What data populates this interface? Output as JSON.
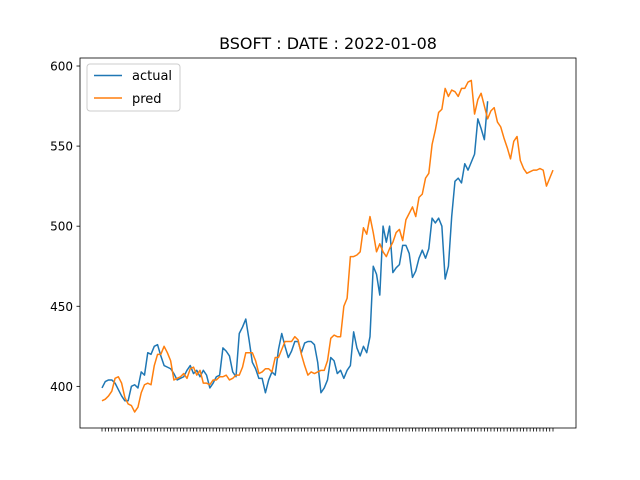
{
  "chart_data": {
    "type": "line",
    "title": "BSOFT : DATE : 2022-01-08",
    "xlabel": "",
    "ylabel": "",
    "ylim": [
      374,
      605
    ],
    "yticks": [
      400,
      450,
      500,
      550,
      600
    ],
    "legend": {
      "position": "top-left"
    },
    "grid": false,
    "series": [
      {
        "name": "actual",
        "color": "#1f77b4",
        "values": [
          399,
          403,
          404,
          404,
          402,
          398,
          394,
          391,
          391,
          400,
          401,
          399,
          409,
          407,
          421,
          420,
          425,
          426,
          419,
          413,
          412,
          411,
          408,
          404,
          405,
          406,
          410,
          413,
          408,
          410,
          406,
          410,
          407,
          399,
          402,
          406,
          407,
          424,
          422,
          419,
          409,
          406,
          433,
          437,
          442,
          429,
          415,
          411,
          405,
          405,
          396,
          404,
          409,
          407,
          423,
          433,
          425,
          418,
          422,
          428,
          428,
          421,
          427,
          428,
          428,
          426,
          415,
          396,
          399,
          404,
          418,
          416,
          408,
          410,
          405,
          410,
          413,
          434,
          424,
          419,
          425,
          421,
          431,
          475,
          470,
          457,
          500,
          490,
          500,
          471,
          474,
          476,
          488,
          488,
          483,
          468,
          472,
          480,
          485,
          480,
          486,
          505,
          502,
          505,
          500,
          467,
          475,
          506,
          528,
          530,
          527,
          539,
          535,
          540,
          545,
          567,
          561,
          554,
          578
        ]
      },
      {
        "name": "pred",
        "color": "#ff7f0e",
        "values": [
          391,
          392,
          394,
          397,
          405,
          406,
          402,
          393,
          389,
          388,
          384,
          387,
          396,
          401,
          402,
          401,
          413,
          420,
          420,
          425,
          421,
          416,
          404,
          405,
          406,
          408,
          405,
          411,
          412,
          407,
          410,
          402,
          402,
          401,
          404,
          404,
          406,
          406,
          407,
          404,
          405,
          407,
          407,
          412,
          421,
          421,
          421,
          416,
          408,
          409,
          411,
          411,
          409,
          418,
          418,
          423,
          428,
          428,
          428,
          431,
          429,
          420,
          413,
          407,
          409,
          408,
          409,
          410,
          410,
          416,
          430,
          432,
          431,
          431,
          450,
          455,
          481,
          481,
          482,
          484,
          499,
          495,
          506,
          496,
          484,
          489,
          484,
          481,
          486,
          490,
          496,
          498,
          491,
          504,
          508,
          512,
          506,
          518,
          520,
          530,
          533,
          551,
          560,
          571,
          573,
          586,
          581,
          585,
          584,
          581,
          586,
          586,
          590,
          591,
          570,
          579,
          583,
          575,
          567,
          572,
          574,
          565,
          562,
          555,
          549,
          542,
          553,
          556,
          541,
          536,
          533,
          534,
          535,
          535,
          536,
          535,
          525,
          530,
          535
        ]
      }
    ]
  }
}
